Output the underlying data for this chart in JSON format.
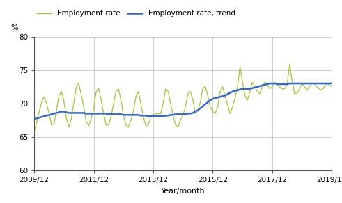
{
  "xlabel": "Year/month",
  "ylabel": "%",
  "ylim": [
    60,
    80
  ],
  "yticks": [
    60,
    65,
    70,
    75,
    80
  ],
  "xtick_labels": [
    "2009/12",
    "2011/12",
    "2013/12",
    "2015/12",
    "2017/12",
    "2019/12"
  ],
  "legend_labels": [
    "Employment rate",
    "Employment rate, trend"
  ],
  "line_color_emp": "#99cc33",
  "line_color_trend": "#3366cc",
  "emp_rate": [
    65.8,
    67.2,
    68.8,
    70.2,
    71.0,
    70.0,
    68.5,
    66.8,
    67.0,
    69.0,
    71.2,
    71.8,
    70.3,
    67.8,
    66.5,
    67.8,
    70.2,
    72.5,
    73.0,
    71.2,
    69.5,
    67.2,
    66.7,
    67.8,
    69.2,
    71.8,
    72.3,
    70.5,
    68.5,
    66.8,
    66.8,
    68.0,
    70.0,
    71.8,
    72.2,
    70.5,
    68.2,
    66.8,
    66.5,
    67.5,
    68.8,
    71.0,
    71.8,
    70.0,
    68.0,
    66.7,
    66.8,
    68.0,
    68.3,
    68.5,
    68.5,
    68.5,
    70.0,
    72.2,
    71.8,
    70.0,
    68.2,
    66.8,
    66.5,
    67.5,
    68.3,
    69.5,
    71.5,
    71.8,
    70.5,
    68.5,
    69.0,
    70.2,
    72.3,
    72.5,
    71.2,
    69.5,
    68.8,
    68.5,
    69.5,
    71.8,
    72.5,
    71.0,
    69.8,
    68.5,
    69.5,
    70.8,
    72.5,
    75.5,
    73.2,
    71.2,
    70.5,
    71.8,
    73.2,
    72.5,
    71.8,
    71.5,
    72.5,
    73.2,
    72.8,
    72.2,
    72.5,
    73.2,
    72.8,
    72.5,
    72.2,
    72.2,
    72.8,
    75.8,
    73.5,
    71.5,
    71.5,
    72.2,
    73.0,
    72.5,
    72.0,
    72.5,
    73.0,
    73.0,
    72.5,
    72.2,
    72.0,
    72.5,
    73.0,
    72.8,
    72.5
  ],
  "trend": [
    67.7,
    67.8,
    67.9,
    68.0,
    68.1,
    68.2,
    68.3,
    68.4,
    68.5,
    68.6,
    68.7,
    68.8,
    68.8,
    68.7,
    68.6,
    68.6,
    68.6,
    68.6,
    68.6,
    68.6,
    68.6,
    68.5,
    68.5,
    68.5,
    68.5,
    68.5,
    68.5,
    68.5,
    68.5,
    68.5,
    68.4,
    68.4,
    68.4,
    68.4,
    68.4,
    68.4,
    68.3,
    68.3,
    68.3,
    68.3,
    68.3,
    68.3,
    68.3,
    68.2,
    68.2,
    68.2,
    68.1,
    68.1,
    68.1,
    68.1,
    68.1,
    68.1,
    68.1,
    68.2,
    68.2,
    68.3,
    68.3,
    68.4,
    68.4,
    68.4,
    68.4,
    68.4,
    68.5,
    68.5,
    68.6,
    68.8,
    69.0,
    69.3,
    69.6,
    69.9,
    70.2,
    70.5,
    70.7,
    70.8,
    70.9,
    71.0,
    71.1,
    71.2,
    71.4,
    71.6,
    71.8,
    71.9,
    72.0,
    72.1,
    72.2,
    72.2,
    72.2,
    72.2,
    72.3,
    72.4,
    72.5,
    72.6,
    72.7,
    72.8,
    72.9,
    73.0,
    73.0,
    73.0,
    72.9,
    72.9,
    72.9,
    72.9,
    72.9,
    73.0,
    73.0,
    73.0,
    73.0,
    73.0,
    73.0,
    73.0,
    73.0,
    73.0,
    73.0,
    73.0,
    73.0,
    73.0,
    73.0,
    73.0,
    73.0,
    73.0,
    73.0
  ],
  "n_points": 121,
  "background_color": "#ffffff",
  "grid_color": "#bbbbbb"
}
